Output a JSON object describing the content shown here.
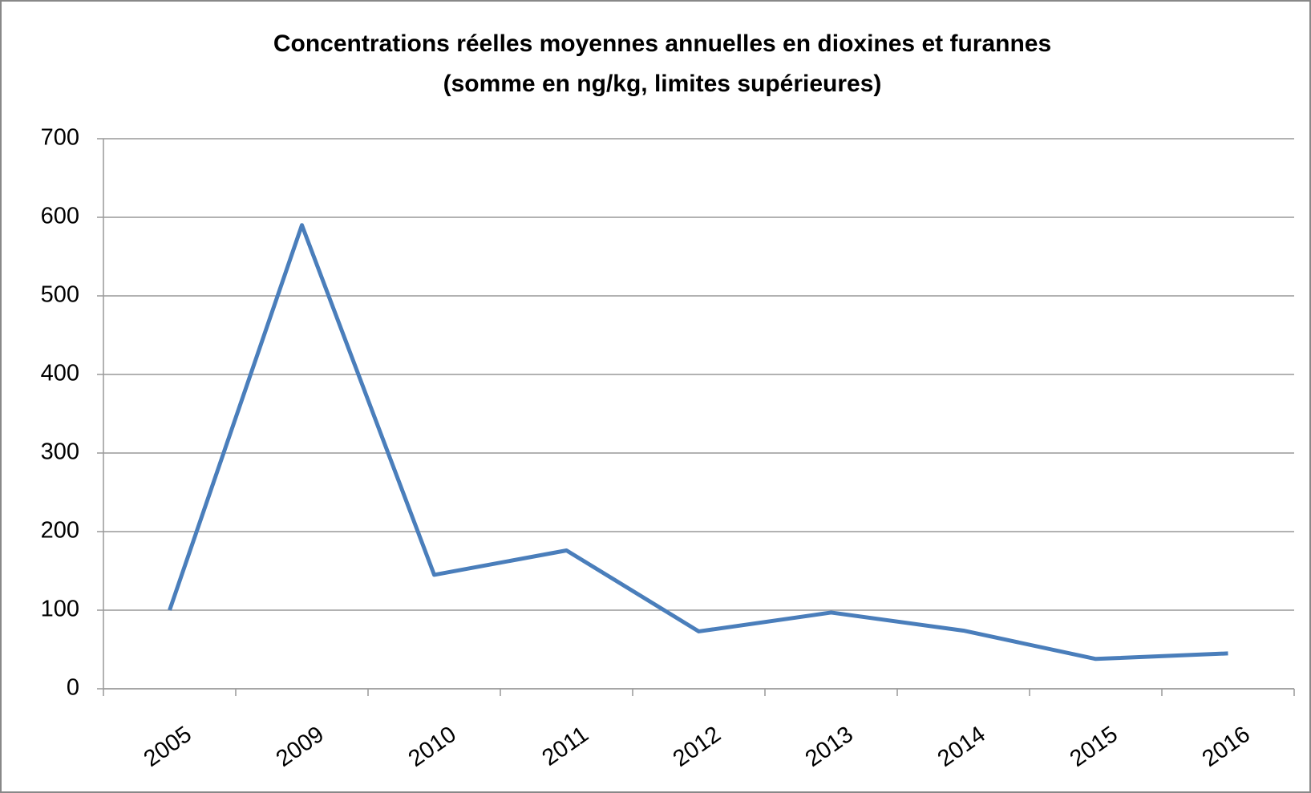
{
  "chart_data": {
    "type": "line",
    "title": "Concentrations réelles moyennes annuelles en dioxines et furannes",
    "subtitle": "(somme en ng/kg, limites supérieures)",
    "categories": [
      "2005",
      "2009",
      "2010",
      "2011",
      "2012",
      "2013",
      "2014",
      "2015",
      "2016"
    ],
    "values": [
      100,
      590,
      145,
      176,
      73,
      97,
      74,
      38,
      45
    ],
    "color": "#4a7ebb",
    "ylim": [
      0,
      700
    ],
    "yticks": [
      0,
      100,
      200,
      300,
      400,
      500,
      600,
      700
    ],
    "grid": true
  }
}
